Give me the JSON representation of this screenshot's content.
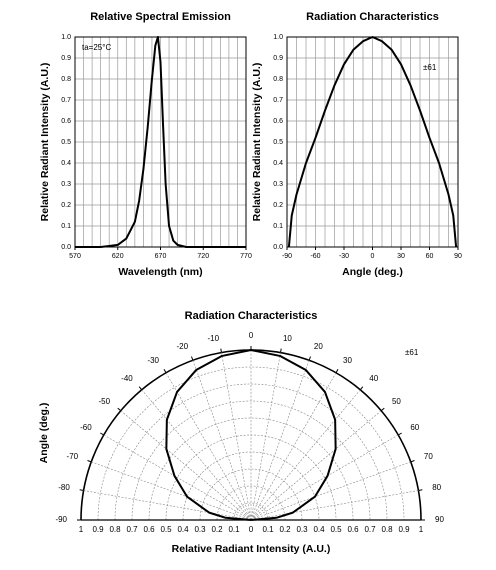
{
  "chart_data": [
    {
      "type": "line",
      "title": "Relative Spectral Emission",
      "xlabel": "Wavelength (nm)",
      "ylabel": "Relative Radiant Intensity (A.U.)",
      "annotation": "ta=25°C",
      "color": "#000000",
      "x": [
        570,
        600,
        610,
        620,
        630,
        640,
        645,
        650,
        655,
        660,
        664,
        667,
        670,
        673,
        676,
        680,
        685,
        690,
        700,
        770
      ],
      "values": [
        0,
        0,
        0.005,
        0.01,
        0.04,
        0.12,
        0.22,
        0.37,
        0.57,
        0.8,
        0.96,
        1.0,
        0.88,
        0.58,
        0.3,
        0.1,
        0.03,
        0.01,
        0,
        0
      ],
      "xlim": [
        570,
        770
      ],
      "xticks": [
        570,
        620,
        670,
        720,
        770
      ],
      "xgrid": [
        570,
        580,
        590,
        600,
        610,
        620,
        630,
        640,
        650,
        660,
        670,
        680,
        690,
        700,
        710,
        720,
        730,
        740,
        750,
        760,
        770
      ],
      "ylim": [
        0,
        1
      ],
      "yticks": [
        {
          "value": 0,
          "label": "0.0"
        },
        0.1,
        0.2,
        0.3,
        0.4,
        0.5,
        0.6,
        0.7,
        0.8,
        0.9,
        {
          "value": 1,
          "label": "1.0"
        }
      ],
      "grid": true
    },
    {
      "type": "line",
      "title": "Radiation Characteristics",
      "xlabel": "Angle (deg.)",
      "ylabel": "Relative Radiant Intensity (A.U.)",
      "annotation": "±61",
      "color": "#000000",
      "x": [
        -88,
        -85,
        -80,
        -70,
        -60,
        -50,
        -40,
        -30,
        -20,
        -10,
        0,
        10,
        20,
        30,
        40,
        50,
        60,
        70,
        80,
        85,
        88
      ],
      "values": [
        0,
        0.15,
        0.25,
        0.4,
        0.52,
        0.65,
        0.77,
        0.87,
        0.94,
        0.98,
        1.0,
        0.98,
        0.94,
        0.87,
        0.77,
        0.65,
        0.52,
        0.4,
        0.25,
        0.15,
        0
      ],
      "xlim": [
        -90,
        90
      ],
      "xticks": [
        -90,
        -60,
        -30,
        0,
        30,
        60,
        90
      ],
      "xgrid": [
        -90,
        -80,
        -70,
        -60,
        -50,
        -40,
        -30,
        -20,
        -10,
        0,
        10,
        20,
        30,
        40,
        50,
        60,
        70,
        80,
        90
      ],
      "ylim": [
        0,
        1
      ],
      "yticks": [
        {
          "value": 0,
          "label": "0.0"
        },
        0.1,
        0.2,
        0.3,
        0.4,
        0.5,
        0.6,
        0.7,
        0.8,
        0.9,
        {
          "value": 1,
          "label": "1.0"
        }
      ],
      "grid": true
    },
    {
      "type": "polar",
      "title": "Radiation Characteristics",
      "xlabel": "Relative Radiant Intensity (A.U.)",
      "ylabel": "Angle (deg.)",
      "annotation": "±61",
      "color": "#000000",
      "x": [
        -88,
        -85,
        -80,
        -70,
        -60,
        -50,
        -40,
        -30,
        -20,
        -10,
        0,
        10,
        20,
        30,
        40,
        50,
        60,
        70,
        80,
        85,
        88
      ],
      "values": [
        0,
        0.15,
        0.25,
        0.4,
        0.52,
        0.65,
        0.77,
        0.87,
        0.94,
        0.98,
        1.0,
        0.98,
        0.94,
        0.87,
        0.77,
        0.65,
        0.52,
        0.4,
        0.25,
        0.15,
        0
      ],
      "angle_ticks": [
        -90,
        -80,
        -70,
        -60,
        -50,
        -40,
        -30,
        -20,
        -10,
        0,
        10,
        20,
        30,
        40,
        50,
        60,
        70,
        80,
        90
      ],
      "rlim": [
        0,
        1
      ],
      "rticks": [
        0,
        0.1,
        0.2,
        0.3,
        0.4,
        0.5,
        0.6,
        0.7,
        0.8,
        0.9,
        1
      ],
      "grid": true
    }
  ]
}
